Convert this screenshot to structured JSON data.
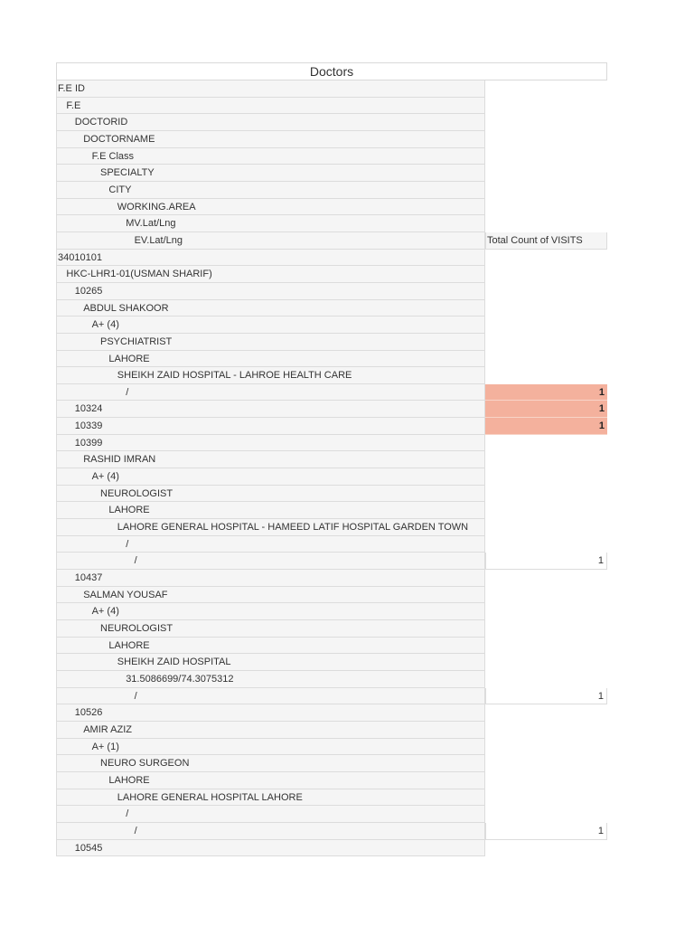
{
  "title": "Doctors",
  "value_header": "Total Count of VISITS",
  "rows": [
    {
      "level": 0,
      "label": "F.E ID",
      "value": null
    },
    {
      "level": 1,
      "label": "F.E",
      "value": null
    },
    {
      "level": 2,
      "label": "DOCTORID",
      "value": null
    },
    {
      "level": 3,
      "label": "DOCTORNAME",
      "value": null
    },
    {
      "level": 4,
      "label": "F.E Class",
      "value": null
    },
    {
      "level": 5,
      "label": "SPECIALTY",
      "value": null
    },
    {
      "level": 6,
      "label": "CITY",
      "value": null
    },
    {
      "level": 7,
      "label": "WORKING.AREA",
      "value": null
    },
    {
      "level": 8,
      "label": "MV.Lat/Lng",
      "value": null
    },
    {
      "level": 9,
      "label": "EV.Lat/Lng",
      "value": "Total Count of VISITS",
      "kind": "header"
    },
    {
      "level": 0,
      "label": "34010101",
      "value": null
    },
    {
      "level": 1,
      "label": "HKC-LHR1-01(USMAN SHARIF)",
      "value": null
    },
    {
      "level": 2,
      "label": "10265",
      "value": null
    },
    {
      "level": 3,
      "label": "ABDUL SHAKOOR",
      "value": null
    },
    {
      "level": 4,
      "label": "A+ (4)",
      "value": null
    },
    {
      "level": 5,
      "label": "PSYCHIATRIST",
      "value": null
    },
    {
      "level": 6,
      "label": "LAHORE",
      "value": null
    },
    {
      "level": 7,
      "label": "SHEIKH ZAID HOSPITAL - LAHROE HEALTH CARE",
      "value": null
    },
    {
      "level": 8,
      "label": "/",
      "value": "1",
      "kind": "hl"
    },
    {
      "level": 2,
      "label": "10324",
      "value": "1",
      "kind": "hl"
    },
    {
      "level": 2,
      "label": "10339",
      "value": "1",
      "kind": "hl"
    },
    {
      "level": 2,
      "label": "10399",
      "value": null
    },
    {
      "level": 3,
      "label": "RASHID IMRAN",
      "value": null
    },
    {
      "level": 4,
      "label": "A+ (4)",
      "value": null
    },
    {
      "level": 5,
      "label": "NEUROLOGIST",
      "value": null
    },
    {
      "level": 6,
      "label": "LAHORE",
      "value": null
    },
    {
      "level": 7,
      "label": "LAHORE GENERAL HOSPITAL - HAMEED LATIF HOSPITAL GARDEN TOWN",
      "value": null
    },
    {
      "level": 8,
      "label": "/",
      "value": null
    },
    {
      "level": 9,
      "label": "/",
      "value": "1",
      "kind": "num"
    },
    {
      "level": 2,
      "label": "10437",
      "value": null
    },
    {
      "level": 3,
      "label": "SALMAN YOUSAF",
      "value": null
    },
    {
      "level": 4,
      "label": "A+ (4)",
      "value": null
    },
    {
      "level": 5,
      "label": "NEUROLOGIST",
      "value": null
    },
    {
      "level": 6,
      "label": "LAHORE",
      "value": null
    },
    {
      "level": 7,
      "label": "SHEIKH ZAID HOSPITAL",
      "value": null
    },
    {
      "level": 8,
      "label": "31.5086699/74.3075312",
      "value": null
    },
    {
      "level": 9,
      "label": "/",
      "value": "1",
      "kind": "num"
    },
    {
      "level": 2,
      "label": "10526",
      "value": null
    },
    {
      "level": 3,
      "label": "AMIR AZIZ",
      "value": null
    },
    {
      "level": 4,
      "label": "A+ (1)",
      "value": null
    },
    {
      "level": 5,
      "label": "NEURO SURGEON",
      "value": null
    },
    {
      "level": 6,
      "label": "LAHORE",
      "value": null
    },
    {
      "level": 7,
      "label": "LAHORE GENERAL HOSPITAL LAHORE",
      "value": null
    },
    {
      "level": 8,
      "label": "/",
      "value": null
    },
    {
      "level": 9,
      "label": "/",
      "value": "1",
      "kind": "num"
    },
    {
      "level": 2,
      "label": "10545",
      "value": null
    }
  ]
}
